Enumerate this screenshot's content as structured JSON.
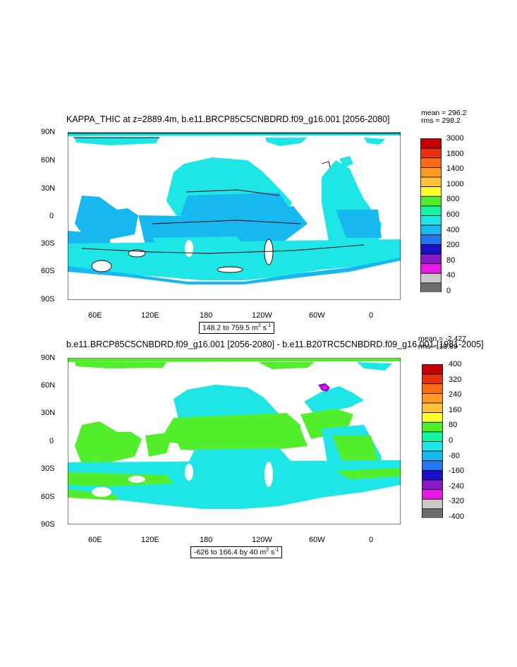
{
  "panels": [
    {
      "title": "KAPPA_THIC at z=2889.4m, b.e11.BRCP85C5CNBDRD.f09_g16.001 [2056-2080]",
      "mean_label": "mean = 296.2",
      "rms_label": "rms = 298.2",
      "range_text": "148.2 to 759.5 m",
      "unit_sup1": "2",
      "unit_mid": " s",
      "unit_sup2": "-1",
      "lat_labels": [
        "90N",
        "60N",
        "30N",
        "0",
        "30S",
        "60S",
        "90S"
      ],
      "lon_labels": [
        "60E",
        "120E",
        "180",
        "120W",
        "60W",
        "0"
      ],
      "colorbar": {
        "labels": [
          "3000",
          "1800",
          "1400",
          "1000",
          "800",
          "600",
          "400",
          "200",
          "80",
          "40",
          "0"
        ],
        "colors": [
          "#c40000",
          "#e83010",
          "#ff6a14",
          "#ff9a28",
          "#ffc03c",
          "#ffff2a",
          "#52ee2c",
          "#14f5a0",
          "#1ee6e6",
          "#17b8f0",
          "#2376ef",
          "#1710c8",
          "#8a18c8",
          "#e818e8",
          "#c8c8c8",
          "#6e6e6e"
        ]
      }
    },
    {
      "title": "b.e11.BRCP85C5CNBDRD.f09_g16.001 [2056-2080] - b.e11.B20TRC5CNBDRD.f09_g16.001 [1981-2005]",
      "mean_label": "mean = -2.427",
      "rms_label": "rms = 18.89",
      "range_text": "-626 to 166.4 by 40 m",
      "unit_sup1": "2",
      "unit_mid": " s",
      "unit_sup2": "-1",
      "lat_labels": [
        "90N",
        "60N",
        "30N",
        "0",
        "30S",
        "60S",
        "90S"
      ],
      "lon_labels": [
        "60E",
        "120E",
        "180",
        "120W",
        "60W",
        "0"
      ],
      "colorbar": {
        "labels": [
          "400",
          "320",
          "240",
          "160",
          "80",
          "0",
          "-80",
          "-160",
          "-240",
          "-320",
          "-400"
        ],
        "colors": [
          "#c40000",
          "#e83010",
          "#ff6a14",
          "#ff9a28",
          "#ffc03c",
          "#ffff2a",
          "#52ee2c",
          "#14f5a0",
          "#1ee6e6",
          "#17b8f0",
          "#2376ef",
          "#1710c8",
          "#8a18c8",
          "#e818e8",
          "#c8c8c8",
          "#6e6e6e"
        ]
      }
    }
  ]
}
